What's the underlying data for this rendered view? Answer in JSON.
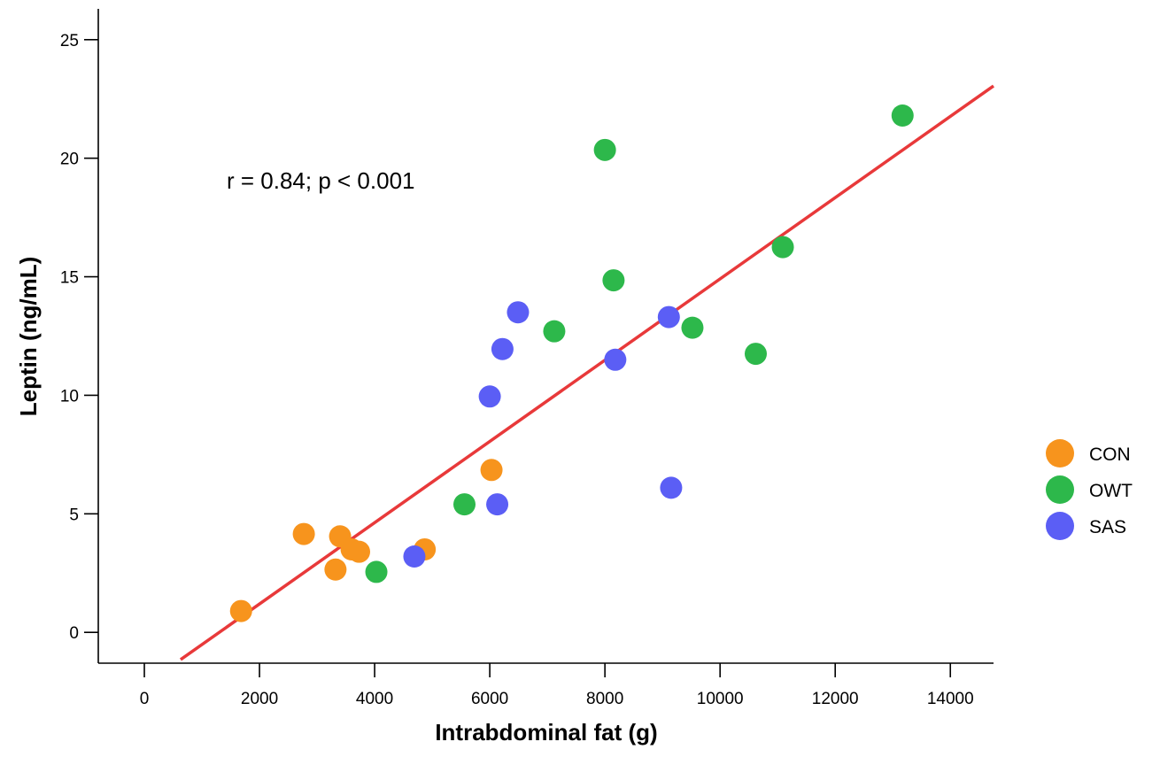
{
  "chart_data": {
    "type": "scatter",
    "title": "",
    "xlabel": "Intrabdominal fat (g)",
    "ylabel": "Leptin (ng/mL)",
    "xlim": [
      -800,
      14750
    ],
    "ylim": [
      -1.3,
      26.3
    ],
    "x_ticks": [
      0,
      2000,
      4000,
      6000,
      8000,
      10000,
      12000,
      14000
    ],
    "y_ticks": [
      0,
      5,
      10,
      15,
      20,
      25
    ],
    "x_tick_labels": [
      "0",
      "2000",
      "4000",
      "6000",
      "8000",
      "10000",
      "12000",
      "14000"
    ],
    "y_tick_labels": [
      "0",
      "5",
      "10",
      "15",
      "20",
      "25"
    ],
    "grid": false,
    "legend_position": "right",
    "annotation": {
      "text": "r = 0.84; p < 0.001"
    },
    "series": [
      {
        "name": "CON",
        "color": "#F7941D",
        "points": [
          {
            "x": 1680,
            "y": 0.9
          },
          {
            "x": 2770,
            "y": 4.15
          },
          {
            "x": 3320,
            "y": 2.65
          },
          {
            "x": 3400,
            "y": 4.05
          },
          {
            "x": 3600,
            "y": 3.5
          },
          {
            "x": 3730,
            "y": 3.4
          },
          {
            "x": 4870,
            "y": 3.5
          },
          {
            "x": 6030,
            "y": 6.85
          }
        ]
      },
      {
        "name": "OWT",
        "color": "#2DB84B",
        "points": [
          {
            "x": 4030,
            "y": 2.55
          },
          {
            "x": 5560,
            "y": 5.4
          },
          {
            "x": 7120,
            "y": 12.7
          },
          {
            "x": 8000,
            "y": 20.35
          },
          {
            "x": 8150,
            "y": 14.85
          },
          {
            "x": 9520,
            "y": 12.85
          },
          {
            "x": 10620,
            "y": 11.75
          },
          {
            "x": 11090,
            "y": 16.25
          },
          {
            "x": 13170,
            "y": 21.8
          }
        ]
      },
      {
        "name": "SAS",
        "color": "#5B5EF5",
        "points": [
          {
            "x": 4690,
            "y": 3.2
          },
          {
            "x": 6000,
            "y": 9.95
          },
          {
            "x": 6130,
            "y": 5.4
          },
          {
            "x": 6220,
            "y": 11.95
          },
          {
            "x": 6490,
            "y": 13.5
          },
          {
            "x": 8180,
            "y": 11.5
          },
          {
            "x": 9110,
            "y": 13.3
          },
          {
            "x": 9150,
            "y": 6.1
          }
        ]
      }
    ],
    "trendline": {
      "color": "#E8393A",
      "x": [
        630,
        14750
      ],
      "y": [
        -1.15,
        23.05
      ]
    }
  }
}
